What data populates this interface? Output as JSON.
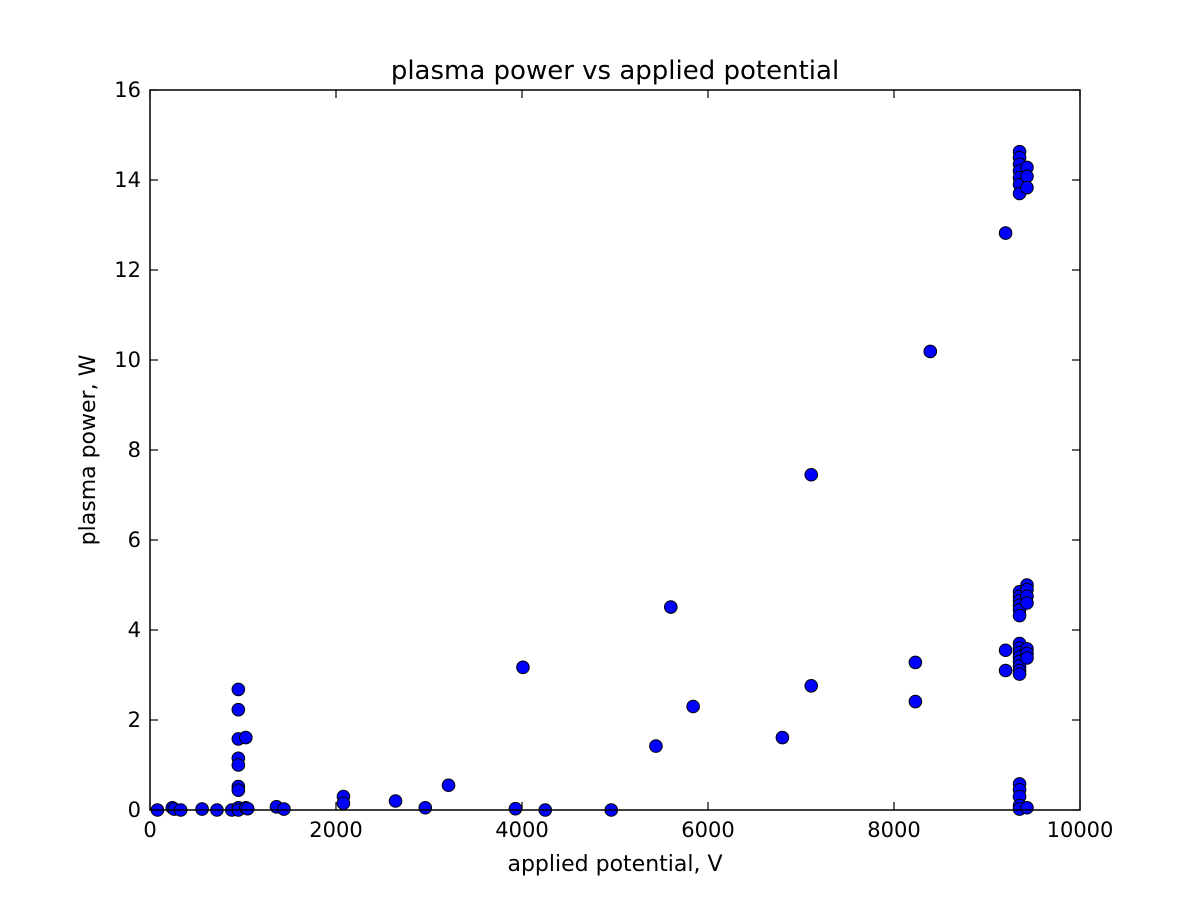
{
  "chart_data": {
    "type": "scatter",
    "title": "plasma power vs applied potential",
    "xlabel": "applied potential, V",
    "ylabel": "plasma power, W",
    "xlim": [
      0,
      10000
    ],
    "ylim": [
      0,
      16
    ],
    "xticks": [
      0,
      2000,
      4000,
      6000,
      8000,
      10000
    ],
    "yticks": [
      0,
      2,
      4,
      6,
      8,
      10,
      12,
      14,
      16
    ],
    "grid": false,
    "legend": "none",
    "marker_color": "#0000ff",
    "marker_edge": "#000000",
    "series": [
      {
        "points": [
          [
            80,
            0.0
          ],
          [
            240,
            0.05
          ],
          [
            260,
            0.02
          ],
          [
            330,
            0.0
          ],
          [
            560,
            0.02
          ],
          [
            720,
            0.0
          ],
          [
            880,
            0.0
          ],
          [
            950,
            2.68
          ],
          [
            950,
            2.23
          ],
          [
            950,
            1.58
          ],
          [
            950,
            1.15
          ],
          [
            950,
            1.0
          ],
          [
            950,
            0.52
          ],
          [
            950,
            0.44
          ],
          [
            950,
            0.05
          ],
          [
            950,
            0.0
          ],
          [
            1030,
            1.61
          ],
          [
            1030,
            0.05
          ],
          [
            1050,
            0.03
          ],
          [
            1360,
            0.07
          ],
          [
            1440,
            0.02
          ],
          [
            2080,
            0.3
          ],
          [
            2080,
            0.15
          ],
          [
            2640,
            0.2
          ],
          [
            2960,
            0.05
          ],
          [
            3210,
            0.55
          ],
          [
            3930,
            0.03
          ],
          [
            4010,
            3.17
          ],
          [
            4250,
            0.0
          ],
          [
            4960,
            0.0
          ],
          [
            5440,
            1.42
          ],
          [
            5600,
            4.51
          ],
          [
            5840,
            2.3
          ],
          [
            6800,
            1.61
          ],
          [
            7110,
            7.45
          ],
          [
            7110,
            2.76
          ],
          [
            8230,
            3.28
          ],
          [
            8230,
            2.41
          ],
          [
            8390,
            10.19
          ],
          [
            9200,
            12.82
          ],
          [
            9200,
            3.55
          ],
          [
            9200,
            3.1
          ],
          [
            9350,
            14.63
          ],
          [
            9350,
            14.5
          ],
          [
            9350,
            14.35
          ],
          [
            9350,
            14.2
          ],
          [
            9350,
            14.05
          ],
          [
            9350,
            13.9
          ],
          [
            9350,
            13.7
          ],
          [
            9350,
            4.85
          ],
          [
            9350,
            4.75
          ],
          [
            9350,
            4.65
          ],
          [
            9350,
            4.55
          ],
          [
            9350,
            4.45
          ],
          [
            9350,
            4.32
          ],
          [
            9350,
            3.7
          ],
          [
            9350,
            3.6
          ],
          [
            9350,
            3.5
          ],
          [
            9350,
            3.4
          ],
          [
            9350,
            3.3
          ],
          [
            9350,
            3.2
          ],
          [
            9350,
            3.1
          ],
          [
            9350,
            3.02
          ],
          [
            9350,
            0.58
          ],
          [
            9350,
            0.45
          ],
          [
            9350,
            0.3
          ],
          [
            9350,
            0.1
          ],
          [
            9350,
            0.02
          ],
          [
            9430,
            14.28
          ],
          [
            9430,
            14.08
          ],
          [
            9430,
            13.83
          ],
          [
            9430,
            5.0
          ],
          [
            9430,
            4.9
          ],
          [
            9430,
            4.75
          ],
          [
            9430,
            4.6
          ],
          [
            9430,
            3.58
          ],
          [
            9430,
            3.48
          ],
          [
            9430,
            3.38
          ],
          [
            9430,
            0.05
          ]
        ]
      }
    ]
  }
}
